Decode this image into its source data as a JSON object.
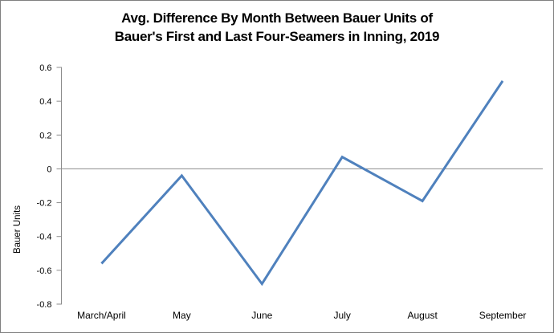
{
  "title": {
    "line1": "Avg. Difference By Month Between Bauer Units of",
    "line2": "Bauer's First and Last Four-Seamers in Inning, 2019"
  },
  "chart_data": {
    "type": "line",
    "title": "Avg. Difference By Month Between Bauer Units of Bauer's First and Last Four-Seamers in Inning, 2019",
    "categories": [
      "March/April",
      "May",
      "June",
      "July",
      "August",
      "September"
    ],
    "values": [
      -0.56,
      -0.04,
      -0.68,
      0.07,
      -0.19,
      0.52
    ],
    "xlabel": "",
    "ylabel": "Bauer Units",
    "ylim": [
      -0.8,
      0.6
    ],
    "ytick_labels": [
      "0.6",
      "0.4",
      "0.2",
      "0",
      "-0.2",
      "-0.4",
      "-0.6",
      "-0.8"
    ],
    "ytick_values": [
      0.6,
      0.4,
      0.2,
      0,
      -0.2,
      -0.4,
      -0.6,
      -0.8
    ],
    "grid": false,
    "zero_line": true,
    "legend": "none",
    "line_color": "#4F81BD",
    "axis_color": "#8C8C8C",
    "text_color": "#000000"
  }
}
